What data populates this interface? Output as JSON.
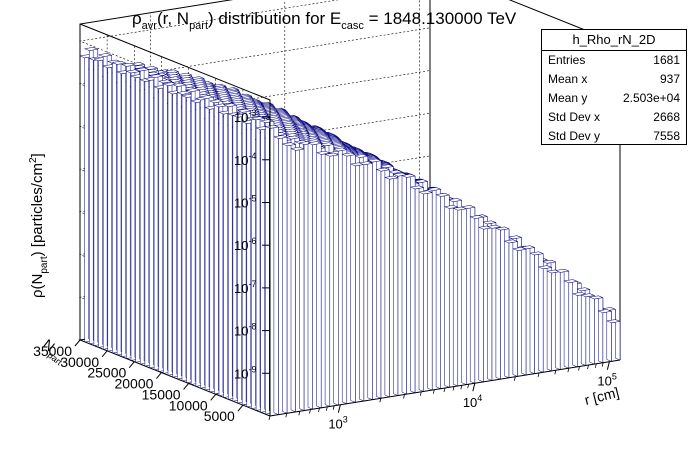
{
  "chart_data": {
    "type": "lego3d",
    "title": {
      "t1": "ρ",
      "t1sub": "avr",
      "t2": "(r, N",
      "t2sub": "part",
      "t3": ") distribution for E",
      "t3sub": "casc",
      "t4": " = 1848.130000 TeV"
    },
    "zlabel": {
      "a": "ρ(N",
      "sub": "part",
      "b": ") [particles/cm",
      "sup": "2",
      "c": "]"
    },
    "ylabel": {
      "a": "N",
      "sub": "part"
    },
    "xlabel": "r [cm]",
    "x_axis": {
      "scale": "log",
      "range": [
        300,
        120000
      ]
    },
    "y_axis": {
      "scale": "linear",
      "range": [
        0,
        35000
      ]
    },
    "z_axis": {
      "scale": "log",
      "range_exponent": [
        -10,
        -2.6
      ]
    },
    "z_ticks": [
      {
        "base": "10",
        "exp": "-3",
        "value": -3
      },
      {
        "base": "10",
        "exp": "-4",
        "value": -4
      },
      {
        "base": "10",
        "exp": "-5",
        "value": -5
      },
      {
        "base": "10",
        "exp": "-6",
        "value": -6
      },
      {
        "base": "10",
        "exp": "-7",
        "value": -7
      },
      {
        "base": "10",
        "exp": "-8",
        "value": -8
      },
      {
        "base": "10",
        "exp": "-9",
        "value": -9
      }
    ],
    "y_ticks": [
      {
        "label": "35000",
        "value": 35000
      },
      {
        "label": "30000",
        "value": 30000
      },
      {
        "label": "25000",
        "value": 25000
      },
      {
        "label": "20000",
        "value": 20000
      },
      {
        "label": "15000",
        "value": 15000
      },
      {
        "label": "10000",
        "value": 10000
      },
      {
        "label": "5000",
        "value": 5000
      }
    ],
    "x_ticks": [
      {
        "base": "10",
        "exp": "3",
        "value": 1000
      },
      {
        "base": "10",
        "exp": "4",
        "value": 10000
      },
      {
        "base": "10",
        "exp": "5",
        "value": 100000
      }
    ],
    "stats": {
      "name": "h_Rho_rN_2D",
      "rows": [
        {
          "label": "Entries",
          "value": "1681"
        },
        {
          "label": "Mean x",
          "value": "937"
        },
        {
          "label": "Mean y",
          "value": "2.503e+04"
        },
        {
          "label": "Std Dev x",
          "value": "2668"
        },
        {
          "label": "Std Dev y",
          "value": "7558"
        }
      ]
    },
    "colors": {
      "fill": "#ffffff",
      "edge": "#000080",
      "frame": "#000000"
    },
    "grid": true
  }
}
